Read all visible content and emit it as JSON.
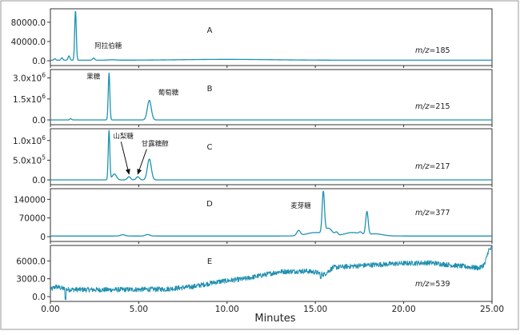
{
  "chart_data": {
    "type": "line",
    "xlabel": "Minutes",
    "xlim": [
      0.0,
      25.0
    ],
    "xticks": [
      "0.00",
      "5.00",
      "10.00",
      "15.00",
      "20.00",
      "25.00"
    ],
    "xtick_values": [
      0,
      5,
      10,
      15,
      20,
      25
    ],
    "grid": false,
    "panels": [
      {
        "letter": "A",
        "mz_label": "m/z",
        "mz_value": "=185",
        "ylim": [
          0,
          108000
        ],
        "yticks": [
          {
            "value": 0,
            "label": "0.0"
          },
          {
            "value": 40000,
            "label": "40000.0"
          },
          {
            "value": 80000,
            "label": "80000.0"
          }
        ],
        "annotations": [
          {
            "text": "阿拉伯糖",
            "x": 2.5,
            "y": 27000
          }
        ],
        "arrows": [],
        "series": {
          "baseline": 1200,
          "peaks": [
            {
              "x": 0.25,
              "height": 3000,
              "width": 0.05
            },
            {
              "x": 0.65,
              "height": 5000,
              "width": 0.05
            },
            {
              "x": 1.05,
              "height": 9000,
              "width": 0.05
            },
            {
              "x": 1.42,
              "height": 103000,
              "width": 0.045
            },
            {
              "x": 2.45,
              "height": 4500,
              "width": 0.06
            },
            {
              "x": 3.5,
              "height": 800,
              "width": 0.2
            },
            {
              "x": 10.0,
              "height": 1600,
              "width": 2.5
            }
          ],
          "noise": 0
        }
      },
      {
        "letter": "B",
        "mz_label": "m/z",
        "mz_value": "=215",
        "ylim": [
          0,
          3600000
        ],
        "yticks": [
          {
            "value": 0,
            "label": "0.0",
            "exp": ""
          },
          {
            "value": 1500000,
            "label": "1.5x10",
            "exp": "6"
          },
          {
            "value": 3000000,
            "label": "3.0x10",
            "exp": "6"
          }
        ],
        "annotations": [
          {
            "text": "果糖",
            "x": 2.05,
            "y": 2950000
          },
          {
            "text": "葡萄糖",
            "x": 6.1,
            "y": 1800000
          }
        ],
        "arrows": [],
        "series": {
          "baseline": 0,
          "peaks": [
            {
              "x": 1.15,
              "height": 90000,
              "width": 0.05
            },
            {
              "x": 3.32,
              "height": 3350000,
              "width": 0.045
            },
            {
              "x": 5.6,
              "height": 1400000,
              "width": 0.11
            }
          ],
          "noise": 0
        }
      },
      {
        "letter": "C",
        "mz_label": "m/z",
        "mz_value": "=217",
        "ylim": [
          0,
          1300000
        ],
        "yticks": [
          {
            "value": 0,
            "label": "0.0",
            "exp": ""
          },
          {
            "value": 500000,
            "label": "5.0x10",
            "exp": "5"
          },
          {
            "value": 1000000,
            "label": "1.0x10",
            "exp": "6"
          }
        ],
        "annotations": [
          {
            "text": "山梨糖",
            "x": 3.55,
            "y": 1060000
          },
          {
            "text": "甘露糖醇",
            "x": 5.15,
            "y": 860000
          }
        ],
        "arrows": [
          {
            "from": [
              4.0,
              970000
            ],
            "to": [
              4.45,
              150000
            ]
          },
          {
            "from": [
              5.45,
              780000
            ],
            "to": [
              4.95,
              150000
            ]
          }
        ],
        "series": {
          "baseline": 0,
          "peaks": [
            {
              "x": 3.32,
              "height": 1250000,
              "width": 0.045
            },
            {
              "x": 3.62,
              "height": 150000,
              "width": 0.12
            },
            {
              "x": 4.45,
              "height": 80000,
              "width": 0.09
            },
            {
              "x": 4.95,
              "height": 80000,
              "width": 0.09
            },
            {
              "x": 5.6,
              "height": 530000,
              "width": 0.11
            }
          ],
          "noise": 0
        }
      },
      {
        "letter": "D",
        "mz_label": "m/z",
        "mz_value": "=377",
        "ylim": [
          0,
          180000
        ],
        "yticks": [
          {
            "value": 0,
            "label": "0",
            "exp": ""
          },
          {
            "value": 70000,
            "label": "70000",
            "exp": ""
          },
          {
            "value": 140000,
            "label": "140000",
            "exp": ""
          }
        ],
        "annotations": [
          {
            "text": "麦芽糖",
            "x": 13.6,
            "y": 108000
          }
        ],
        "arrows": [],
        "series": {
          "baseline": 2500,
          "peaks": [
            {
              "x": 4.1,
              "height": 5000,
              "width": 0.12
            },
            {
              "x": 5.5,
              "height": 5500,
              "width": 0.12
            },
            {
              "x": 14.05,
              "height": 19000,
              "width": 0.1
            },
            {
              "x": 15.0,
              "height": 13000,
              "width": 0.5
            },
            {
              "x": 15.45,
              "height": 152000,
              "width": 0.065
            },
            {
              "x": 15.75,
              "height": 25000,
              "width": 0.2
            },
            {
              "x": 16.2,
              "height": 11000,
              "width": 0.08
            },
            {
              "x": 17.1,
              "height": 13000,
              "width": 0.45
            },
            {
              "x": 17.55,
              "height": 7000,
              "width": 0.08
            },
            {
              "x": 17.92,
              "height": 86000,
              "width": 0.07
            },
            {
              "x": 18.4,
              "height": 8000,
              "width": 0.4
            }
          ],
          "noise": 0
        }
      },
      {
        "letter": "E",
        "mz_label": "m/z",
        "mz_value": "=539",
        "ylim": [
          0,
          8600
        ],
        "yticks": [
          {
            "value": 0,
            "label": "0.0",
            "exp": ""
          },
          {
            "value": 3000,
            "label": "3000.0",
            "exp": ""
          },
          {
            "value": 6000,
            "label": "6000.0",
            "exp": ""
          }
        ],
        "annotations": [],
        "arrows": [],
        "series": {
          "profile": [
            [
              0.0,
              1100
            ],
            [
              0.3,
              1700
            ],
            [
              0.9,
              1200
            ],
            [
              3.0,
              1150
            ],
            [
              6.5,
              1250
            ],
            [
              8.0,
              1650
            ],
            [
              9.5,
              2500
            ],
            [
              11.0,
              3000
            ],
            [
              13.0,
              4200
            ],
            [
              14.5,
              4300
            ],
            [
              15.0,
              4100
            ],
            [
              15.5,
              3700
            ],
            [
              16.0,
              4900
            ],
            [
              18.0,
              5300
            ],
            [
              20.0,
              5600
            ],
            [
              21.5,
              5700
            ],
            [
              23.0,
              5200
            ],
            [
              24.3,
              4800
            ],
            [
              24.6,
              5500
            ],
            [
              24.8,
              7800
            ],
            [
              25.0,
              8100
            ]
          ],
          "dips": [
            {
              "x": 0.85,
              "depth": 1400
            },
            {
              "x": 15.3,
              "depth": 900
            }
          ],
          "noise": 420
        }
      }
    ]
  }
}
